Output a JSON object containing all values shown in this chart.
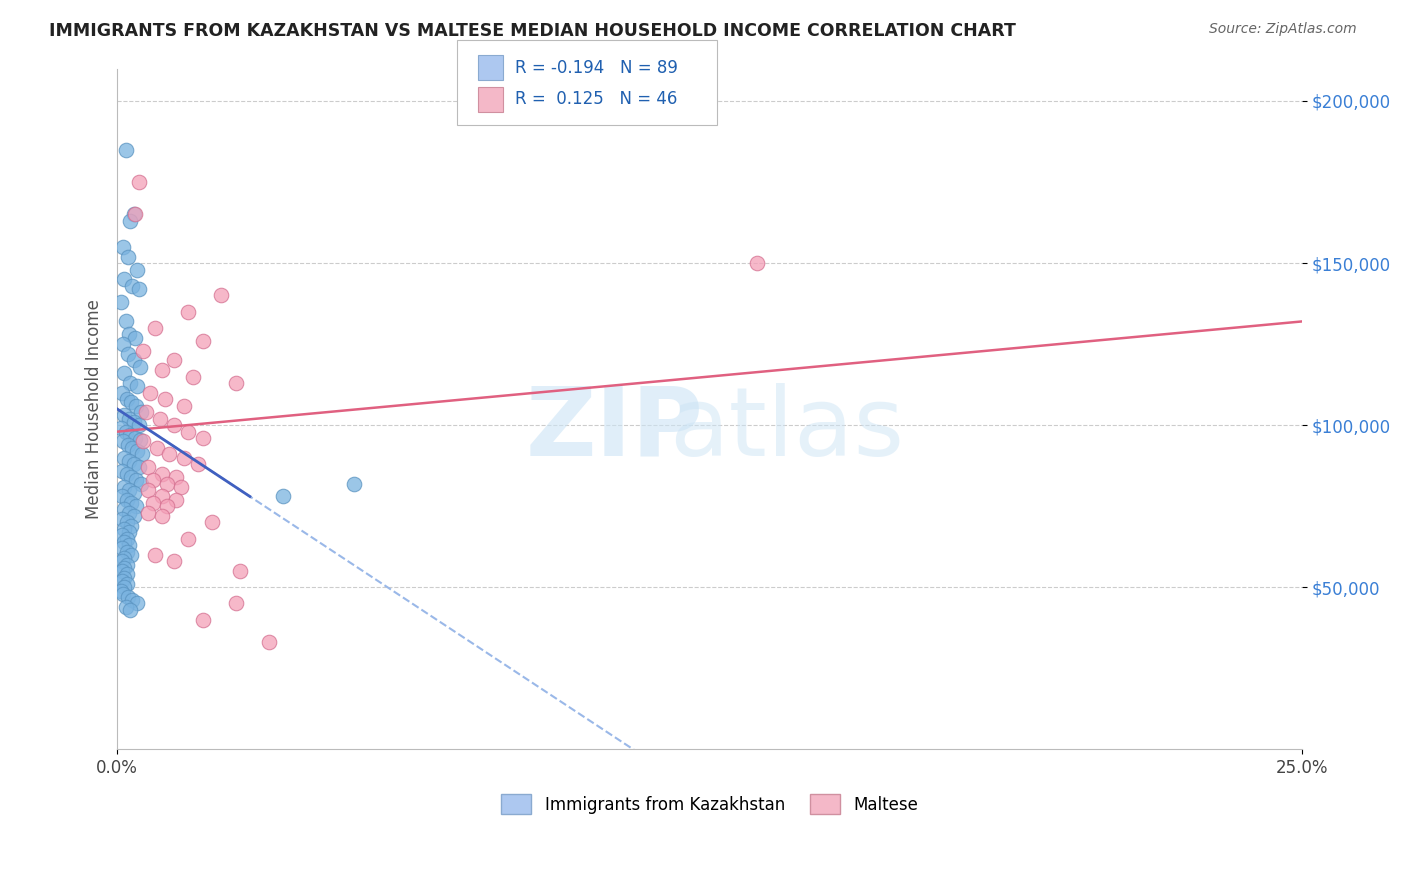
{
  "title": "IMMIGRANTS FROM KAZAKHSTAN VS MALTESE MEDIAN HOUSEHOLD INCOME CORRELATION CHART",
  "source": "Source: ZipAtlas.com",
  "ylabel": "Median Household Income",
  "xmin": 0.0,
  "xmax": 25.0,
  "ymin": 0,
  "ymax": 210000,
  "blue_color": "#7ab3e0",
  "blue_edge": "#5a93c0",
  "pink_color": "#f4a0b8",
  "pink_edge": "#d47090",
  "trendline_blue_solid_color": "#4060c0",
  "trendline_blue_dash_color": "#9ab8e8",
  "trendline_pink_color": "#e06080",
  "legend_blue_fill": "#adc8f0",
  "legend_pink_fill": "#f4b8c8",
  "ytick_color": "#3a7fd5",
  "blue_dots_x": [
    0.18,
    0.35,
    0.28,
    0.12,
    0.22,
    0.42,
    0.15,
    0.32,
    0.45,
    0.08,
    0.18,
    0.25,
    0.38,
    0.12,
    0.22,
    0.35,
    0.48,
    0.15,
    0.28,
    0.42,
    0.1,
    0.2,
    0.3,
    0.4,
    0.5,
    0.15,
    0.25,
    0.35,
    0.45,
    0.08,
    0.18,
    0.28,
    0.38,
    0.48,
    0.12,
    0.22,
    0.32,
    0.42,
    0.52,
    0.15,
    0.25,
    0.35,
    0.45,
    0.1,
    0.2,
    0.3,
    0.4,
    0.5,
    0.15,
    0.25,
    0.35,
    0.1,
    0.2,
    0.3,
    0.4,
    0.15,
    0.25,
    0.35,
    0.1,
    0.2,
    0.3,
    0.15,
    0.25,
    0.1,
    0.2,
    0.15,
    0.25,
    0.1,
    0.2,
    0.3,
    0.15,
    0.1,
    0.2,
    0.15,
    0.1,
    0.2,
    0.15,
    0.1,
    0.2,
    0.15,
    3.5,
    5.0,
    0.08,
    0.12,
    0.22,
    0.32,
    0.42,
    0.18,
    0.28
  ],
  "blue_dots_y": [
    185000,
    165000,
    163000,
    155000,
    152000,
    148000,
    145000,
    143000,
    142000,
    138000,
    132000,
    128000,
    127000,
    125000,
    122000,
    120000,
    118000,
    116000,
    113000,
    112000,
    110000,
    108000,
    107000,
    106000,
    104000,
    103000,
    102000,
    101000,
    100000,
    99000,
    98000,
    97000,
    96000,
    95500,
    95000,
    94000,
    93000,
    92000,
    91000,
    90000,
    89000,
    88000,
    87000,
    86000,
    85000,
    84000,
    83000,
    82000,
    81000,
    80000,
    79000,
    78000,
    77000,
    76000,
    75000,
    74000,
    73000,
    72000,
    71000,
    70000,
    69000,
    68000,
    67000,
    66000,
    65000,
    64000,
    63000,
    62000,
    61000,
    60000,
    59000,
    58000,
    57000,
    56000,
    55000,
    54000,
    53000,
    52000,
    51000,
    50000,
    78000,
    82000,
    49000,
    48000,
    47000,
    46000,
    45000,
    44000,
    43000
  ],
  "pink_dots_x": [
    0.45,
    0.38,
    2.2,
    1.5,
    0.8,
    1.8,
    0.55,
    1.2,
    0.95,
    1.6,
    2.5,
    0.7,
    1.0,
    1.4,
    0.6,
    0.9,
    1.2,
    1.5,
    1.8,
    0.55,
    0.85,
    1.1,
    1.4,
    1.7,
    0.65,
    0.95,
    1.25,
    0.75,
    1.05,
    1.35,
    0.65,
    0.95,
    1.25,
    0.75,
    1.05,
    0.65,
    0.95,
    2.6,
    3.2,
    13.5,
    2.0,
    1.5,
    0.8,
    1.2,
    2.5,
    1.8
  ],
  "pink_dots_y": [
    175000,
    165000,
    140000,
    135000,
    130000,
    126000,
    123000,
    120000,
    117000,
    115000,
    113000,
    110000,
    108000,
    106000,
    104000,
    102000,
    100000,
    98000,
    96000,
    95000,
    93000,
    91000,
    90000,
    88000,
    87000,
    85000,
    84000,
    83000,
    82000,
    81000,
    80000,
    78000,
    77000,
    76000,
    75000,
    73000,
    72000,
    55000,
    33000,
    150000,
    70000,
    65000,
    60000,
    58000,
    45000,
    40000
  ]
}
